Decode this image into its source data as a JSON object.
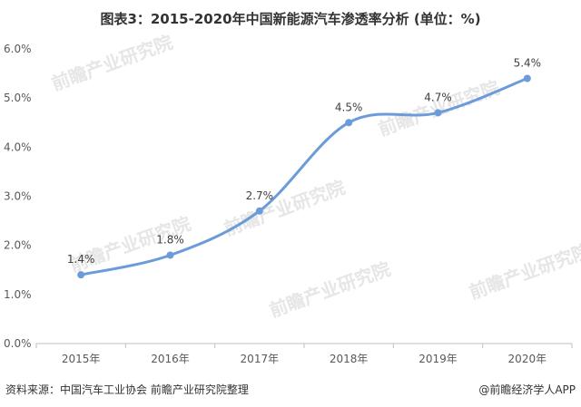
{
  "title": "图表3：2015-2020年中国新能源汽车渗透率分析 (单位：%)",
  "source": "资料来源：中国汽车工业协会 前瞻产业研究院整理",
  "credit": "@前瞻经济学人APP",
  "watermark": "前瞻产业研究院",
  "colors": {
    "line": "#6b9bd9",
    "grid": "#e0e0e0",
    "axis": "#bfbfbf"
  },
  "chart_data": {
    "type": "line",
    "categories": [
      "2015年",
      "2016年",
      "2017年",
      "2018年",
      "2019年",
      "2020年"
    ],
    "values": [
      1.4,
      1.8,
      2.7,
      4.5,
      4.7,
      5.4
    ],
    "data_labels": [
      "1.4%",
      "1.8%",
      "2.7%",
      "4.5%",
      "4.7%",
      "5.4%"
    ],
    "ylim": [
      0,
      6
    ],
    "yticks": [
      0,
      1,
      2,
      3,
      4,
      5,
      6
    ],
    "ytick_labels": [
      "0.0%",
      "1.0%",
      "2.0%",
      "3.0%",
      "4.0%",
      "5.0%",
      "6.0%"
    ],
    "smooth": true,
    "grid": false
  }
}
